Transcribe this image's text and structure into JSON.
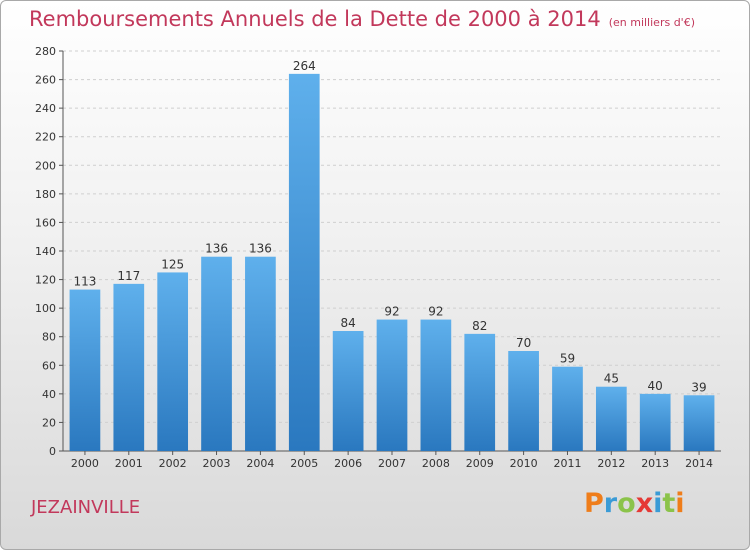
{
  "title": "Remboursements Annuels de la Dette de 2000 à 2014",
  "subtitle": "(en milliers d'€)",
  "commune": "JEZAINVILLE",
  "brand": {
    "name": "Proxiti",
    "letters": [
      "P",
      "r",
      "o",
      "x",
      "i",
      "t",
      "i"
    ],
    "colors": [
      "#ef7d1a",
      "#3a9bd6",
      "#8bc34a",
      "#e53935",
      "#3a9bd6",
      "#8bc34a",
      "#ef7d1a"
    ]
  },
  "colors": {
    "bar_top": "#5fb0ec",
    "bar_bottom": "#2a78bf",
    "accent": "#c2385b"
  },
  "chart_data": {
    "type": "bar",
    "title": "Remboursements Annuels de la Dette de 2000 à 2014",
    "subtitle": "(en milliers d'€)",
    "categories": [
      "2000",
      "2001",
      "2002",
      "2003",
      "2004",
      "2005",
      "2006",
      "2007",
      "2008",
      "2009",
      "2010",
      "2011",
      "2012",
      "2013",
      "2014"
    ],
    "values": [
      113,
      117,
      125,
      136,
      136,
      264,
      84,
      92,
      92,
      82,
      70,
      59,
      45,
      40,
      39
    ],
    "ylim": [
      0,
      280
    ],
    "yticks": [
      0,
      20,
      40,
      60,
      80,
      100,
      120,
      140,
      160,
      180,
      200,
      220,
      240,
      260,
      280
    ],
    "grid": true,
    "legend": "none"
  }
}
